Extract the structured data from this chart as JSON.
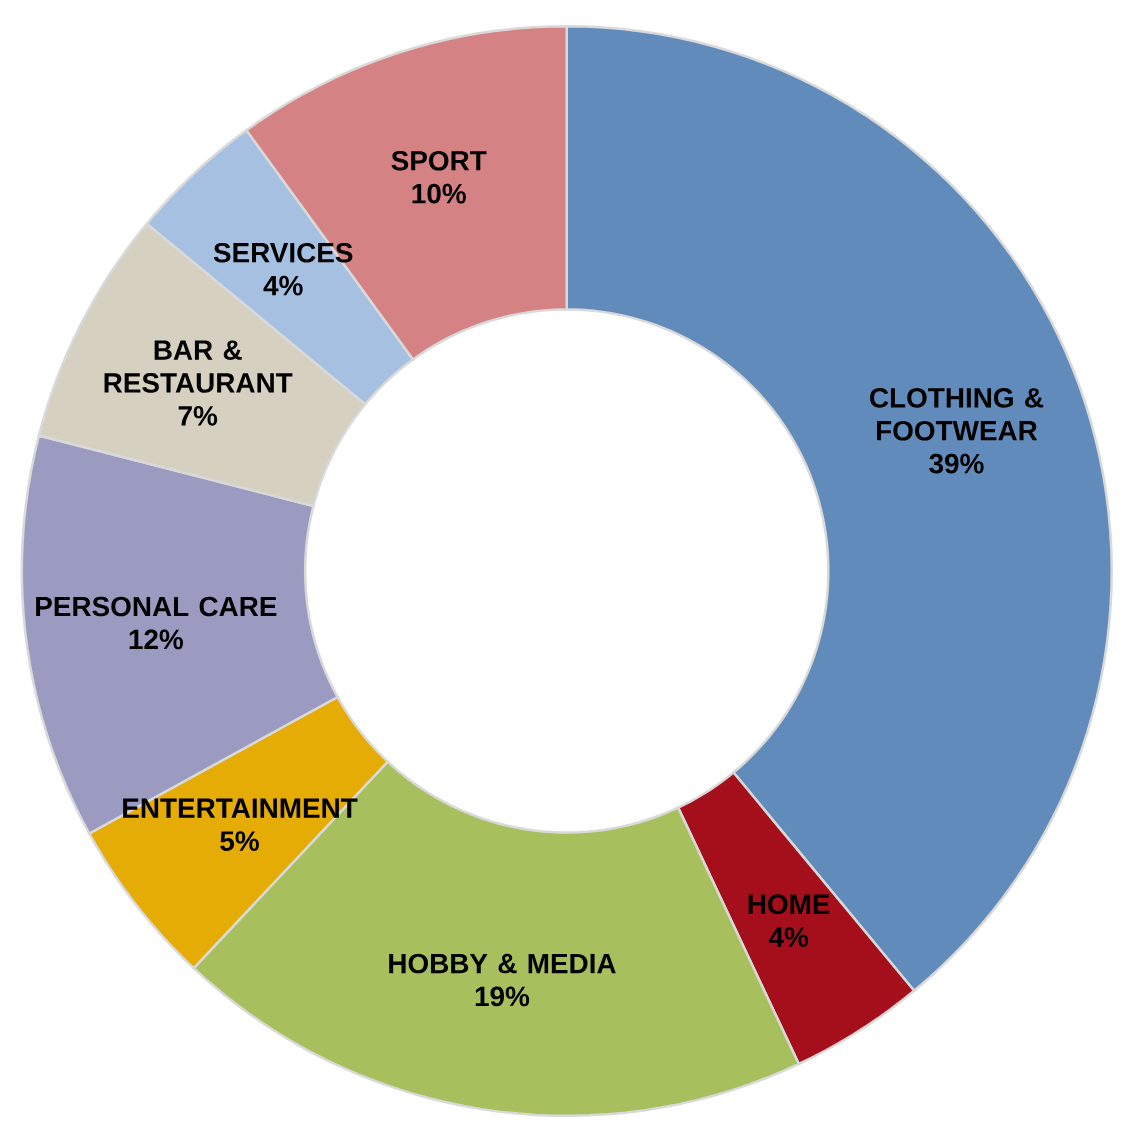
{
  "chart_data": {
    "type": "donut",
    "categories": [
      "CLOTHING & FOOTWEAR",
      "HOME",
      "HOBBY & MEDIA",
      "ENTERTAINMENT",
      "PERSONAL CARE",
      "BAR & RESTAURANT",
      "SERVICES",
      "SPORT"
    ],
    "values": [
      39,
      4,
      19,
      5,
      12,
      7,
      4,
      10
    ],
    "value_labels": [
      "39%",
      "4%",
      "19%",
      "5%",
      "12%",
      "7%",
      "4%",
      "10%"
    ],
    "colors": [
      "#618bbb",
      "#a50f1c",
      "#a8bf5e",
      "#e5ac06",
      "#9b9bc2",
      "#d6d0c0",
      "#a6c0e2",
      "#d48283"
    ]
  }
}
